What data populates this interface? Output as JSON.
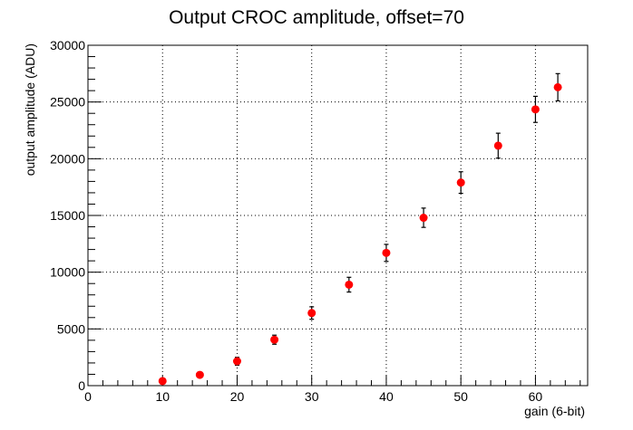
{
  "chart_data": {
    "type": "scatter",
    "title": "Output CROC amplitude, offset=70",
    "xlabel": "gain (6-bit)",
    "ylabel": "output amplitude (ADU)",
    "xlim": [
      0,
      67
    ],
    "ylim": [
      0,
      30000
    ],
    "x_ticks": [
      0,
      10,
      20,
      30,
      40,
      50,
      60
    ],
    "y_ticks": [
      0,
      5000,
      10000,
      15000,
      20000,
      25000,
      30000
    ],
    "grid": true,
    "series": [
      {
        "color": "#ff0000",
        "points": [
          {
            "x": 10,
            "y": 400,
            "err": 150
          },
          {
            "x": 15,
            "y": 950,
            "err": 150
          },
          {
            "x": 20,
            "y": 2150,
            "err": 350
          },
          {
            "x": 25,
            "y": 4050,
            "err": 400
          },
          {
            "x": 30,
            "y": 6400,
            "err": 550
          },
          {
            "x": 35,
            "y": 8900,
            "err": 650
          },
          {
            "x": 40,
            "y": 11700,
            "err": 750
          },
          {
            "x": 45,
            "y": 14800,
            "err": 850
          },
          {
            "x": 50,
            "y": 17900,
            "err": 950
          },
          {
            "x": 55,
            "y": 21150,
            "err": 1100
          },
          {
            "x": 60,
            "y": 24350,
            "err": 1150
          },
          {
            "x": 63,
            "y": 26300,
            "err": 1200
          }
        ]
      }
    ]
  }
}
